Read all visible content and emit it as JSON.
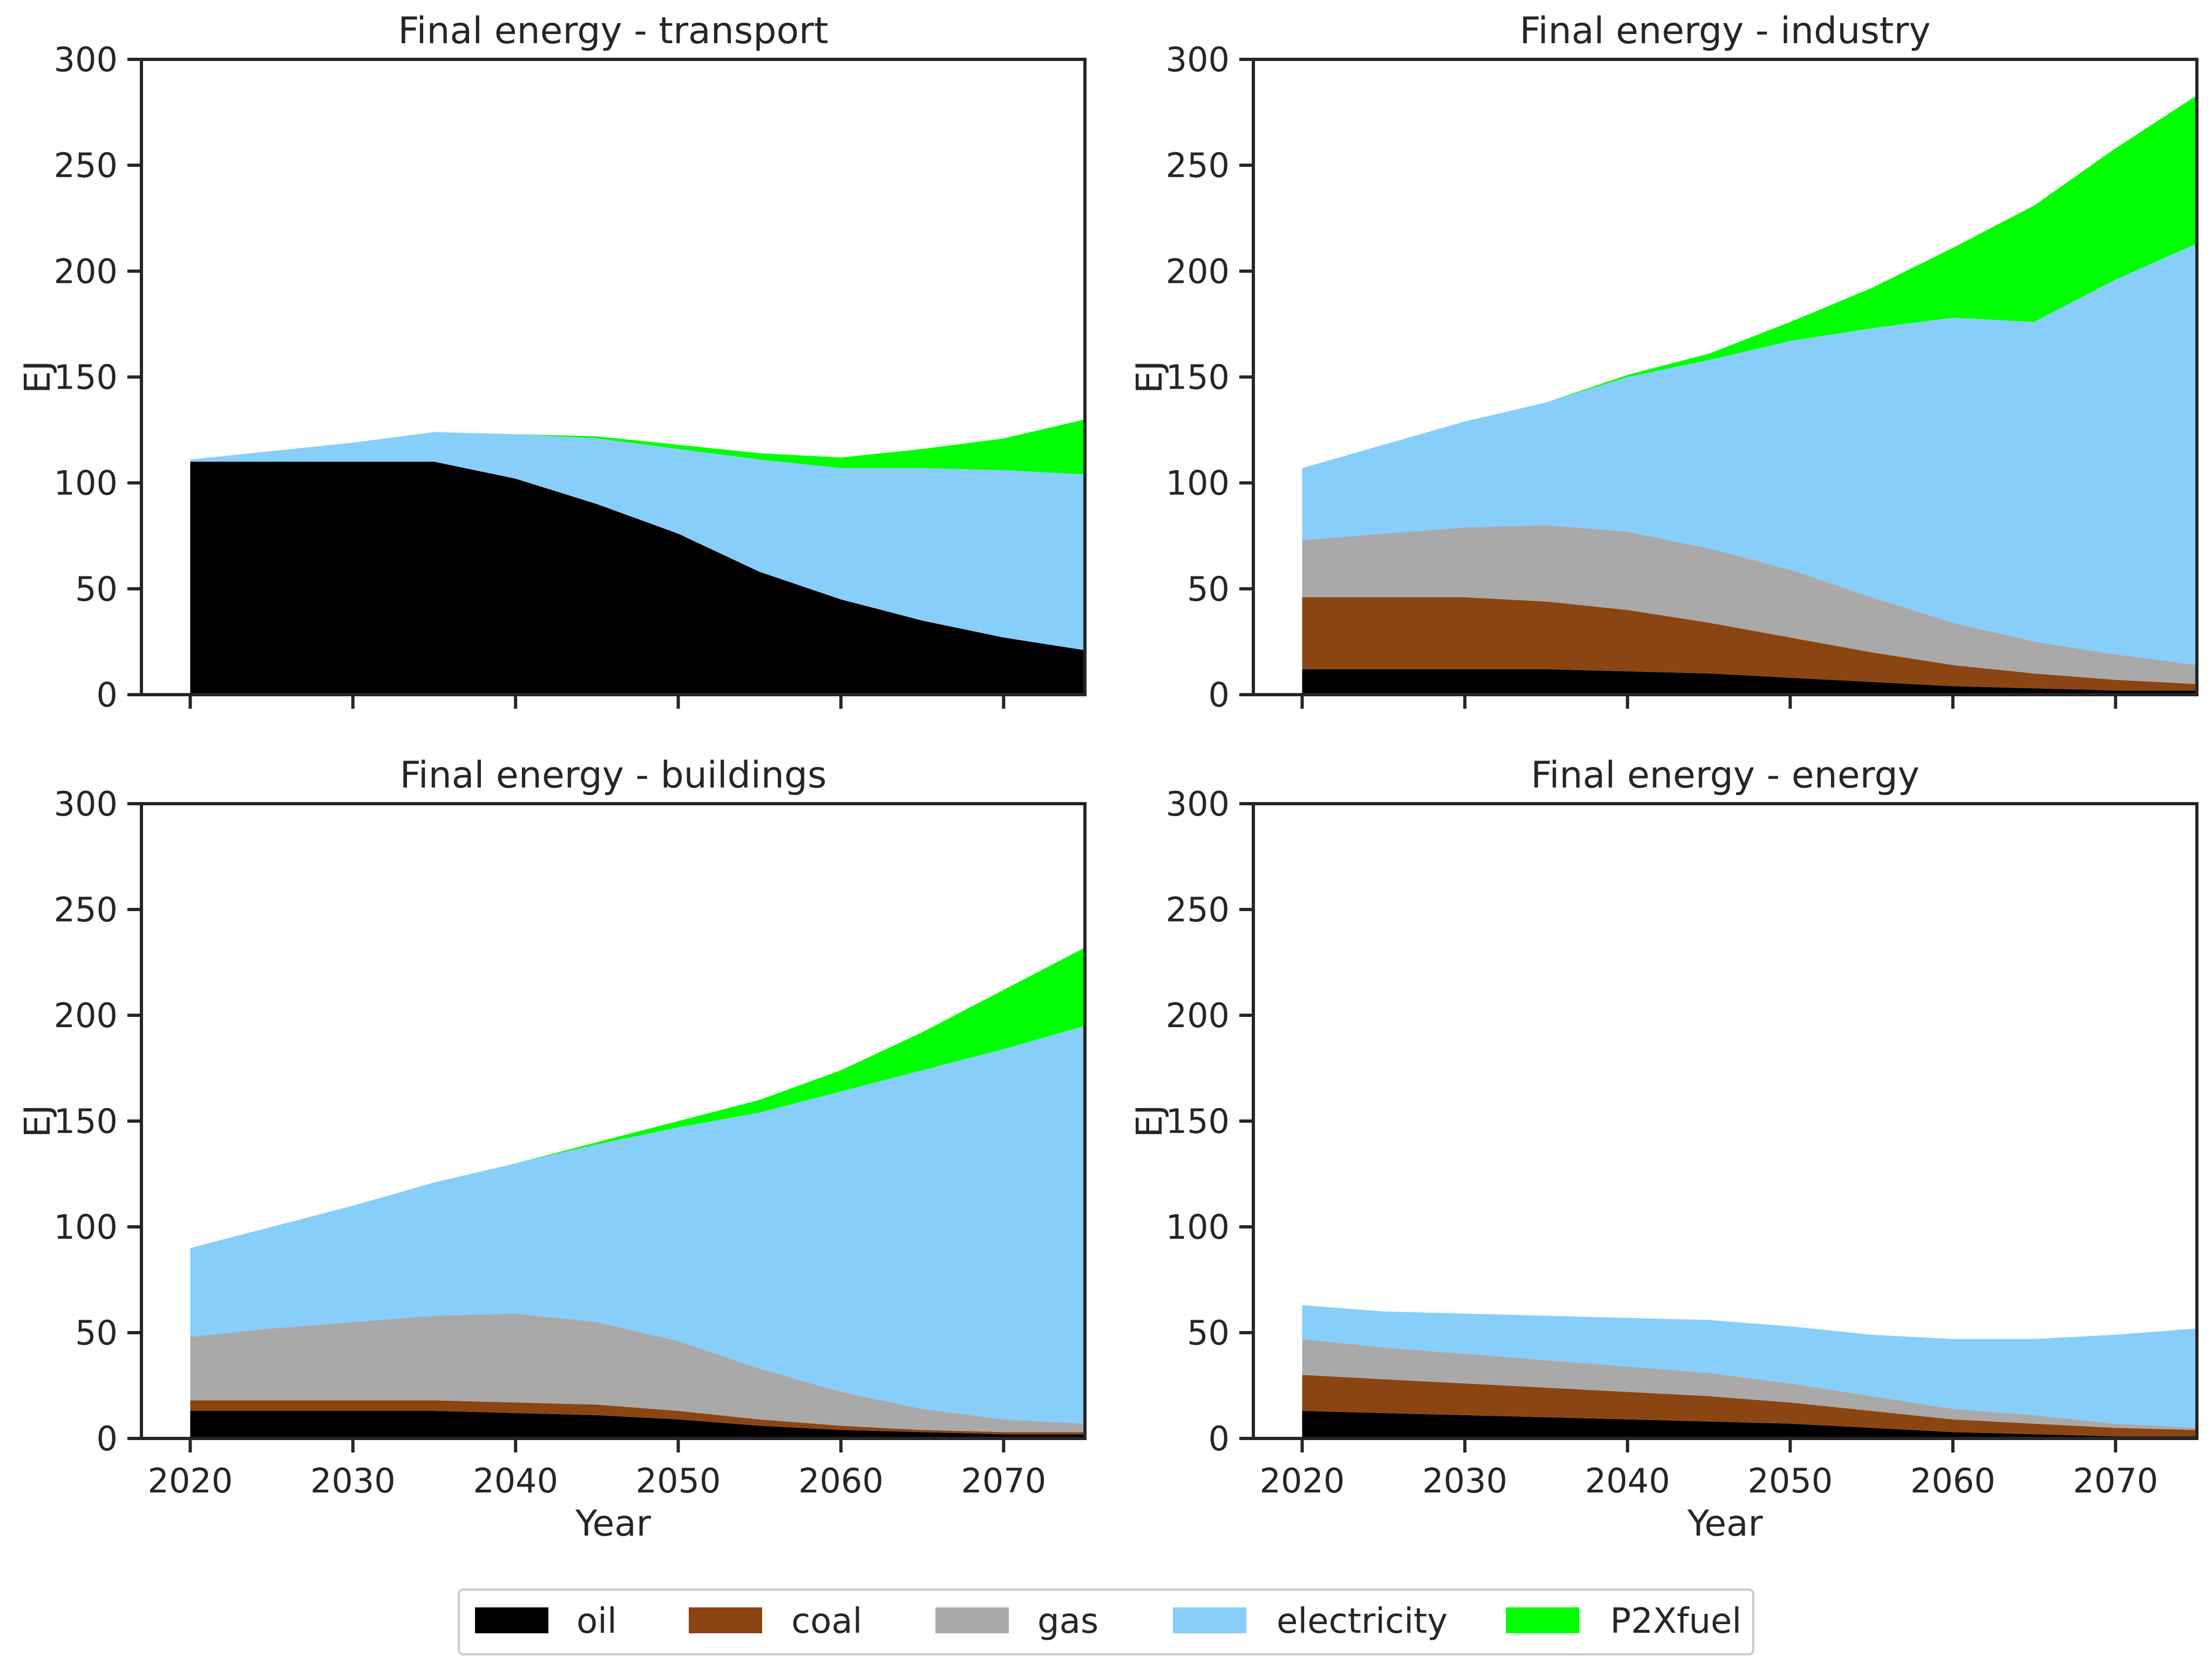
{
  "chart_data": [
    {
      "type": "area",
      "stacked": true,
      "title": "Final energy - transport",
      "xlabel": "",
      "ylabel": "EJ",
      "xlim": [
        2017,
        2075
      ],
      "ylim": [
        0,
        300
      ],
      "xticks": [
        2020,
        2030,
        2040,
        2050,
        2060,
        2070
      ],
      "xtick_labels_visible": false,
      "yticks": [
        0,
        50,
        100,
        150,
        200,
        250,
        300
      ],
      "grid": false,
      "x": [
        2020,
        2025,
        2030,
        2035,
        2040,
        2045,
        2050,
        2055,
        2060,
        2065,
        2070,
        2075
      ],
      "series": [
        {
          "name": "oil",
          "values": [
            110,
            110,
            110,
            110,
            102,
            90,
            76,
            58,
            45,
            35,
            27,
            21
          ]
        },
        {
          "name": "coal",
          "values": [
            0,
            0,
            0,
            0,
            0,
            0,
            0,
            0,
            0,
            0,
            0,
            0
          ]
        },
        {
          "name": "gas",
          "values": [
            0,
            0,
            0,
            0,
            0,
            0,
            0,
            0,
            0,
            0,
            0,
            0
          ]
        },
        {
          "name": "electricity",
          "values": [
            1,
            5,
            9,
            14,
            21,
            31,
            40,
            53,
            62,
            72,
            79,
            83
          ]
        },
        {
          "name": "P2Xfuel",
          "values": [
            0,
            0,
            0,
            0,
            0,
            1,
            2,
            3,
            5,
            9,
            15,
            26
          ]
        }
      ]
    },
    {
      "type": "area",
      "stacked": true,
      "title": "Final energy - industry",
      "xlabel": "",
      "ylabel": "EJ",
      "xlim": [
        2017,
        2075
      ],
      "ylim": [
        0,
        300
      ],
      "xticks": [
        2020,
        2030,
        2040,
        2050,
        2060,
        2070
      ],
      "xtick_labels_visible": false,
      "yticks": [
        0,
        50,
        100,
        150,
        200,
        250,
        300
      ],
      "grid": false,
      "x": [
        2020,
        2025,
        2030,
        2035,
        2040,
        2045,
        2050,
        2055,
        2060,
        2065,
        2070,
        2075
      ],
      "series": [
        {
          "name": "oil",
          "values": [
            12,
            12,
            12,
            12,
            11,
            10,
            8,
            6,
            4,
            3,
            2,
            2
          ]
        },
        {
          "name": "coal",
          "values": [
            34,
            34,
            34,
            32,
            29,
            24,
            19,
            14,
            10,
            7,
            5,
            3
          ]
        },
        {
          "name": "gas",
          "values": [
            27,
            30,
            33,
            36,
            37,
            35,
            32,
            26,
            20,
            15,
            12,
            9
          ]
        },
        {
          "name": "electricity",
          "values": [
            34,
            42,
            50,
            58,
            73,
            89,
            108,
            127,
            144,
            151,
            177,
            199
          ]
        },
        {
          "name": "P2Xfuel",
          "values": [
            0,
            0,
            0,
            0,
            1,
            3,
            9,
            19,
            33,
            55,
            62,
            70
          ]
        }
      ]
    },
    {
      "type": "area",
      "stacked": true,
      "title": "Final energy - buildings",
      "xlabel": "Year",
      "ylabel": "EJ",
      "xlim": [
        2017,
        2075
      ],
      "ylim": [
        0,
        300
      ],
      "xticks": [
        2020,
        2030,
        2040,
        2050,
        2060,
        2070
      ],
      "yticks": [
        0,
        50,
        100,
        150,
        200,
        250,
        300
      ],
      "grid": false,
      "x": [
        2020,
        2025,
        2030,
        2035,
        2040,
        2045,
        2050,
        2055,
        2060,
        2065,
        2070,
        2075
      ],
      "series": [
        {
          "name": "oil",
          "values": [
            13,
            13,
            13,
            13,
            12,
            11,
            9,
            6,
            4,
            3,
            2,
            2
          ]
        },
        {
          "name": "coal",
          "values": [
            5,
            5,
            5,
            5,
            5,
            5,
            4,
            3,
            2,
            1,
            1,
            1
          ]
        },
        {
          "name": "gas",
          "values": [
            30,
            34,
            37,
            40,
            42,
            39,
            33,
            24,
            16,
            10,
            6,
            4
          ]
        },
        {
          "name": "electricity",
          "values": [
            42,
            48,
            55,
            63,
            71,
            84,
            101,
            121,
            142,
            160,
            175,
            188
          ]
        },
        {
          "name": "P2Xfuel",
          "values": [
            0,
            0,
            0,
            0,
            0,
            1,
            3,
            6,
            10,
            18,
            28,
            37
          ]
        }
      ]
    },
    {
      "type": "area",
      "stacked": true,
      "title": "Final energy - energy",
      "xlabel": "Year",
      "ylabel": "EJ",
      "xlim": [
        2017,
        2075
      ],
      "ylim": [
        0,
        300
      ],
      "xticks": [
        2020,
        2030,
        2040,
        2050,
        2060,
        2070
      ],
      "yticks": [
        0,
        50,
        100,
        150,
        200,
        250,
        300
      ],
      "grid": false,
      "x": [
        2020,
        2025,
        2030,
        2035,
        2040,
        2045,
        2050,
        2055,
        2060,
        2065,
        2070,
        2075
      ],
      "series": [
        {
          "name": "oil",
          "values": [
            13,
            12,
            11,
            10,
            9,
            8,
            7,
            5,
            3,
            2,
            1,
            1
          ]
        },
        {
          "name": "coal",
          "values": [
            17,
            16,
            15,
            14,
            13,
            12,
            10,
            8,
            6,
            5,
            4,
            3
          ]
        },
        {
          "name": "gas",
          "values": [
            17,
            15,
            14,
            13,
            12,
            11,
            9,
            7,
            5,
            4,
            2,
            1
          ]
        },
        {
          "name": "electricity",
          "values": [
            16,
            17,
            19,
            21,
            23,
            25,
            27,
            29,
            33,
            36,
            42,
            47
          ]
        },
        {
          "name": "P2Xfuel",
          "values": [
            0,
            0,
            0,
            0,
            0,
            0,
            0,
            0,
            0,
            0,
            0,
            0
          ]
        }
      ]
    }
  ],
  "legend": {
    "placement": "bottom-center",
    "items": [
      {
        "label": "oil",
        "color": "#000000"
      },
      {
        "label": "coal",
        "color": "#8b4513"
      },
      {
        "label": "gas",
        "color": "#a9a9a9"
      },
      {
        "label": "electricity",
        "color": "#87cefa"
      },
      {
        "label": "P2Xfuel",
        "color": "#00ff00"
      }
    ]
  },
  "colors": {
    "oil": "#000000",
    "coal": "#8b4513",
    "gas": "#a9a9a9",
    "electricity": "#87cefa",
    "P2Xfuel": "#00ff00",
    "axis": "#262626"
  }
}
